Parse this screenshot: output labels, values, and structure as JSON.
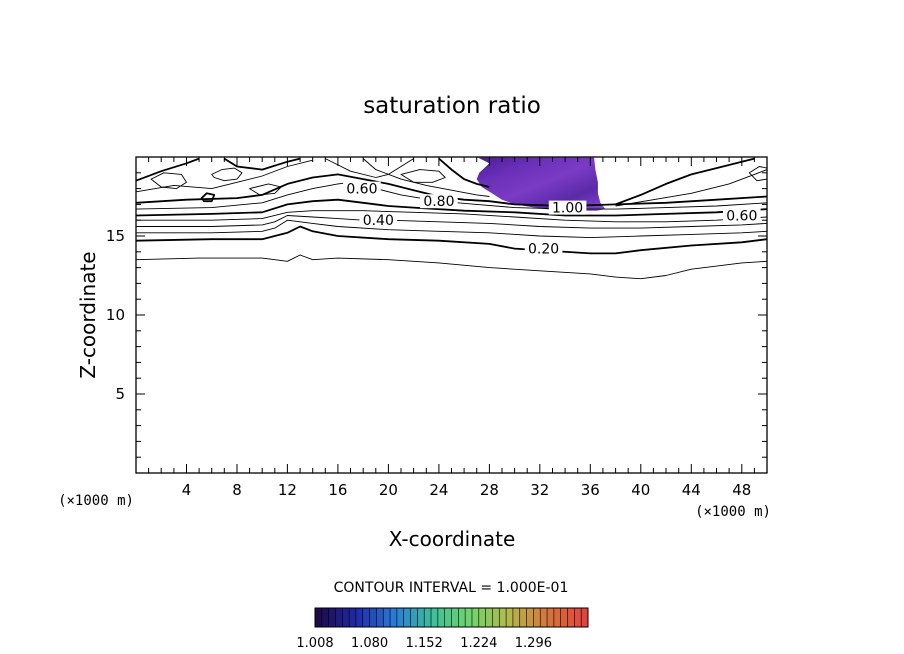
{
  "chart_data": {
    "type": "contour",
    "title": "saturation ratio",
    "xlabel": "X-coordinate",
    "ylabel": "Z-coordinate",
    "x_unit": "(×1000 m)",
    "y_unit": "(×1000 m)",
    "xlim": [
      0,
      50
    ],
    "ylim": [
      0,
      20
    ],
    "x_ticks": [
      "4",
      "8",
      "12",
      "16",
      "20",
      "24",
      "28",
      "32",
      "36",
      "40",
      "44",
      "48"
    ],
    "y_ticks": [
      "5",
      "10",
      "15"
    ],
    "contour_interval_text": "CONTOUR INTERVAL =  1.000E-01",
    "contour_labels": [
      {
        "text": "0.60",
        "x": 17.9,
        "y": 18.0
      },
      {
        "text": "0.80",
        "x": 24.0,
        "y": 17.2
      },
      {
        "text": "0.40",
        "x": 19.2,
        "y": 16.0
      },
      {
        "text": "1.00",
        "x": 34.2,
        "y": 16.8
      },
      {
        "text": "0.60",
        "x": 48.0,
        "y": 16.3
      },
      {
        "text": "0.20",
        "x": 32.3,
        "y": 14.2
      }
    ],
    "contours": [
      {
        "level": 0.1,
        "points": [
          [
            0,
            13.5
          ],
          [
            5,
            13.6
          ],
          [
            10,
            13.6
          ],
          [
            12,
            13.4
          ],
          [
            13,
            13.8
          ],
          [
            14,
            13.5
          ],
          [
            16,
            13.6
          ],
          [
            20,
            13.5
          ],
          [
            24,
            13.3
          ],
          [
            28,
            13.0
          ],
          [
            32,
            12.8
          ],
          [
            36,
            12.6
          ],
          [
            38,
            12.4
          ],
          [
            40,
            12.3
          ],
          [
            42,
            12.5
          ],
          [
            44,
            12.9
          ],
          [
            48,
            13.3
          ],
          [
            50,
            13.4
          ]
        ]
      },
      {
        "level": 0.2,
        "points": [
          [
            0,
            14.7
          ],
          [
            6,
            14.8
          ],
          [
            10,
            14.8
          ],
          [
            12,
            15.2
          ],
          [
            13,
            15.6
          ],
          [
            14,
            15.3
          ],
          [
            16,
            15.0
          ],
          [
            20,
            14.8
          ],
          [
            24,
            14.7
          ],
          [
            28,
            14.5
          ],
          [
            30,
            14.2
          ],
          [
            36,
            13.9
          ],
          [
            38,
            13.9
          ],
          [
            40,
            14.1
          ],
          [
            44,
            14.4
          ],
          [
            48,
            14.6
          ],
          [
            50,
            14.8
          ]
        ]
      },
      {
        "level": 0.3,
        "points": [
          [
            0,
            15.2
          ],
          [
            6,
            15.2
          ],
          [
            10,
            15.3
          ],
          [
            11,
            15.5
          ],
          [
            12,
            16.0
          ],
          [
            14,
            15.8
          ],
          [
            16,
            15.6
          ],
          [
            20,
            15.4
          ],
          [
            24,
            15.3
          ],
          [
            28,
            15.2
          ],
          [
            32,
            15.0
          ],
          [
            36,
            14.9
          ],
          [
            40,
            15.0
          ],
          [
            44,
            15.1
          ],
          [
            48,
            15.2
          ],
          [
            50,
            15.3
          ]
        ]
      },
      {
        "level": 0.4,
        "points": [
          [
            0,
            15.6
          ],
          [
            6,
            15.6
          ],
          [
            10,
            15.7
          ],
          [
            11,
            15.9
          ],
          [
            12,
            16.3
          ],
          [
            14,
            16.2
          ],
          [
            16,
            16.1
          ],
          [
            18,
            16.0
          ],
          [
            20,
            16.0
          ],
          [
            24,
            15.9
          ],
          [
            28,
            15.8
          ],
          [
            32,
            15.6
          ],
          [
            36,
            15.5
          ],
          [
            40,
            15.5
          ],
          [
            44,
            15.6
          ],
          [
            48,
            15.7
          ],
          [
            50,
            15.8
          ]
        ]
      },
      {
        "level": 0.5,
        "points": [
          [
            0,
            16.0
          ],
          [
            6,
            16.0
          ],
          [
            10,
            16.1
          ],
          [
            12,
            16.5
          ],
          [
            14,
            16.6
          ],
          [
            18,
            16.6
          ],
          [
            22,
            16.5
          ],
          [
            26,
            16.4
          ],
          [
            30,
            16.2
          ],
          [
            34,
            16.0
          ],
          [
            38,
            15.9
          ],
          [
            42,
            15.9
          ],
          [
            46,
            16.0
          ],
          [
            50,
            16.2
          ]
        ]
      },
      {
        "level": 0.6,
        "points": [
          [
            0,
            16.3
          ],
          [
            6,
            16.4
          ],
          [
            10,
            16.5
          ],
          [
            12,
            17.0
          ],
          [
            14,
            17.2
          ],
          [
            16,
            17.3
          ],
          [
            18,
            17.1
          ],
          [
            20,
            16.9
          ],
          [
            22,
            16.8
          ],
          [
            26,
            16.6
          ],
          [
            30,
            16.5
          ],
          [
            34,
            16.3
          ],
          [
            38,
            16.3
          ],
          [
            42,
            16.4
          ],
          [
            46,
            16.5
          ],
          [
            48,
            16.6
          ],
          [
            50,
            16.7
          ]
        ]
      },
      {
        "level": 0.7,
        "points": [
          [
            0,
            16.7
          ],
          [
            6,
            16.8
          ],
          [
            10,
            17.1
          ],
          [
            12,
            17.6
          ],
          [
            14,
            18.0
          ],
          [
            16,
            18.3
          ],
          [
            17,
            18.4
          ],
          [
            19,
            18.0
          ],
          [
            21,
            17.6
          ],
          [
            24,
            17.2
          ],
          [
            27,
            17.0
          ],
          [
            30,
            16.8
          ],
          [
            34,
            16.7
          ],
          [
            38,
            16.7
          ],
          [
            42,
            16.8
          ],
          [
            46,
            16.9
          ],
          [
            50,
            17.1
          ]
        ]
      },
      {
        "level": 0.8,
        "points": [
          [
            0,
            17.1
          ],
          [
            4,
            17.3
          ],
          [
            8,
            17.4
          ],
          [
            10,
            17.6
          ],
          [
            12,
            18.3
          ],
          [
            14,
            18.7
          ],
          [
            16,
            18.9
          ],
          [
            18,
            18.6
          ],
          [
            20,
            18.3
          ],
          [
            22,
            17.9
          ],
          [
            24,
            17.5
          ],
          [
            26,
            17.3
          ],
          [
            28,
            17.2
          ],
          [
            30,
            17.0
          ],
          [
            34,
            16.9
          ],
          [
            38,
            17.0
          ],
          [
            42,
            17.1
          ],
          [
            46,
            17.3
          ],
          [
            50,
            17.5
          ]
        ]
      },
      {
        "level": 0.9,
        "points": [
          [
            0,
            17.8
          ],
          [
            3,
            18.2
          ],
          [
            6,
            18.0
          ],
          [
            8,
            18.4
          ],
          [
            10,
            18.8
          ],
          [
            12,
            19.4
          ],
          [
            14,
            19.8
          ]
        ]
      },
      {
        "level": 0.9,
        "points": [
          [
            18,
            19.9
          ],
          [
            19,
            19.2
          ],
          [
            21,
            18.6
          ],
          [
            23,
            18.2
          ],
          [
            25,
            17.9
          ],
          [
            27,
            17.6
          ],
          [
            28,
            17.5
          ]
        ]
      },
      {
        "level": 0.8,
        "points": [
          [
            0,
            18.5
          ],
          [
            2,
            19.1
          ],
          [
            4,
            19.6
          ],
          [
            5,
            19.9
          ]
        ]
      },
      {
        "level": 0.8,
        "points": [
          [
            7,
            19.9
          ],
          [
            8,
            19.4
          ],
          [
            10,
            19.2
          ],
          [
            12,
            19.7
          ],
          [
            13,
            19.9
          ]
        ]
      },
      {
        "level": 1.0,
        "points": [
          [
            38,
            17.0
          ],
          [
            40,
            17.6
          ],
          [
            42,
            18.3
          ],
          [
            44,
            18.9
          ],
          [
            46,
            19.3
          ],
          [
            48,
            19.7
          ],
          [
            49,
            19.9
          ]
        ]
      },
      {
        "level": 0.9,
        "points": [
          [
            38,
            16.9
          ],
          [
            41,
            17.3
          ],
          [
            44,
            17.7
          ],
          [
            47,
            18.3
          ],
          [
            49,
            18.9
          ],
          [
            50,
            19.2
          ]
        ]
      },
      {
        "level": 0.7,
        "points": [
          [
            15,
            19.9
          ],
          [
            16,
            19.5
          ],
          [
            17,
            19.1
          ],
          [
            19,
            18.7
          ],
          [
            20,
            18.9
          ],
          [
            21,
            19.4
          ],
          [
            22,
            19.9
          ]
        ]
      },
      {
        "level": 0.6,
        "points": [
          [
            24,
            19.9
          ],
          [
            25,
            19.2
          ],
          [
            26,
            18.6
          ],
          [
            27,
            18.3
          ],
          [
            28,
            18.1
          ]
        ]
      }
    ],
    "closed_contours": [
      {
        "level": 0.85,
        "points": [
          [
            6,
            18.9
          ],
          [
            6.8,
            19.2
          ],
          [
            7.8,
            19.3
          ],
          [
            8.4,
            19.0
          ],
          [
            8.0,
            18.6
          ],
          [
            7.0,
            18.5
          ],
          [
            6.2,
            18.7
          ]
        ]
      },
      {
        "level": 0.8,
        "points": [
          [
            5.2,
            17.4
          ],
          [
            5.6,
            17.7
          ],
          [
            6.2,
            17.6
          ],
          [
            6.0,
            17.2
          ],
          [
            5.4,
            17.2
          ]
        ]
      },
      {
        "level": 0.75,
        "points": [
          [
            1.2,
            18.6
          ],
          [
            2.2,
            19.0
          ],
          [
            3.6,
            18.9
          ],
          [
            4.0,
            18.4
          ],
          [
            3.2,
            18.0
          ],
          [
            2.0,
            18.1
          ]
        ]
      },
      {
        "level": 0.75,
        "points": [
          [
            21,
            18.9
          ],
          [
            22.5,
            19.2
          ],
          [
            24,
            19.1
          ],
          [
            24.5,
            18.7
          ],
          [
            23.5,
            18.4
          ],
          [
            22,
            18.4
          ]
        ]
      },
      {
        "level": 0.7,
        "points": [
          [
            9,
            18.0
          ],
          [
            10.5,
            18.3
          ],
          [
            11.5,
            18.1
          ],
          [
            11.0,
            17.7
          ],
          [
            9.8,
            17.6
          ]
        ]
      },
      {
        "level": 0.75,
        "points": [
          [
            48.6,
            19.0
          ],
          [
            49.4,
            19.4
          ],
          [
            50,
            19.3
          ],
          [
            50,
            18.6
          ],
          [
            49.2,
            18.5
          ]
        ]
      }
    ],
    "heavy_levels": [
      0.2,
      0.6,
      0.8,
      1.0
    ],
    "filled_region": {
      "threshold": 1.0,
      "points": [
        [
          27.1,
          19.96
        ],
        [
          28.0,
          19.6
        ],
        [
          27.2,
          19.0
        ],
        [
          27.0,
          18.6
        ],
        [
          27.4,
          18.1
        ],
        [
          28.2,
          17.7
        ],
        [
          29.0,
          17.3
        ],
        [
          30.0,
          17.0
        ],
        [
          31.6,
          16.8
        ],
        [
          33.0,
          16.65
        ],
        [
          35.0,
          16.6
        ],
        [
          36.5,
          16.6
        ],
        [
          37.2,
          16.7
        ],
        [
          36.8,
          17.1
        ],
        [
          36.6,
          17.7
        ],
        [
          36.6,
          18.4
        ],
        [
          36.4,
          19.2
        ],
        [
          36.3,
          19.96
        ]
      ]
    },
    "colorbar": {
      "min": 1.008,
      "max": 1.368,
      "tick_labels": [
        "1.008",
        "1.080",
        "1.152",
        "1.224",
        "1.296"
      ],
      "tick_values": [
        1.008,
        1.08,
        1.152,
        1.224,
        1.296
      ],
      "segments": 40,
      "colormap_stops": [
        "#1e0b4a",
        "#1f2aa8",
        "#2a7ad6",
        "#3fbf9a",
        "#6fd46a",
        "#b3b94e",
        "#d4773a",
        "#e0443f"
      ]
    },
    "fill_colors": [
      "#4a1c96",
      "#6a2fb8",
      "#7b3bc4",
      "#5a2aa8",
      "#8a4ad0"
    ]
  }
}
